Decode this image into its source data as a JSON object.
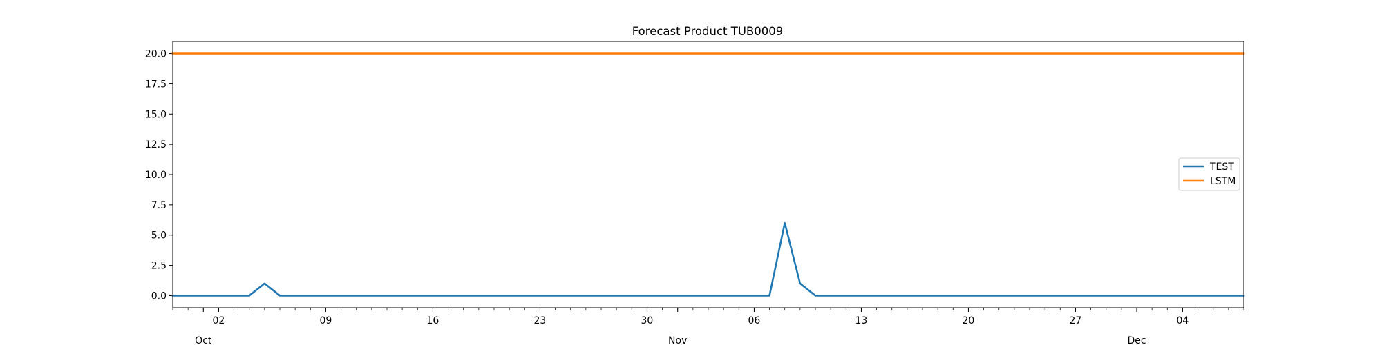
{
  "chart_data": {
    "type": "line",
    "title": "Forecast Product TUB0009",
    "xlabel": "",
    "ylabel": "",
    "grid": false,
    "legend_placement": "center-right",
    "x_range": [
      "2023-09-29",
      "2023-12-08"
    ],
    "ylim": [
      -1.0,
      21.0
    ],
    "y_ticks": [
      0.0,
      2.5,
      5.0,
      7.5,
      10.0,
      12.5,
      15.0,
      17.5,
      20.0
    ],
    "y_tick_labels": [
      "0.0",
      "2.5",
      "5.0",
      "7.5",
      "10.0",
      "12.5",
      "15.0",
      "17.5",
      "20.0"
    ],
    "x_major_ticks": [
      {
        "date": "2023-10-02",
        "label": "02"
      },
      {
        "date": "2023-10-09",
        "label": "09"
      },
      {
        "date": "2023-10-16",
        "label": "16"
      },
      {
        "date": "2023-10-23",
        "label": "23"
      },
      {
        "date": "2023-10-30",
        "label": "30"
      },
      {
        "date": "2023-11-06",
        "label": "06"
      },
      {
        "date": "2023-11-13",
        "label": "13"
      },
      {
        "date": "2023-11-20",
        "label": "20"
      },
      {
        "date": "2023-11-27",
        "label": "27"
      },
      {
        "date": "2023-12-04",
        "label": "04"
      }
    ],
    "x_month_labels": [
      {
        "date": "2023-10-01",
        "label": "Oct"
      },
      {
        "date": "2023-11-01",
        "label": "Nov"
      },
      {
        "date": "2023-12-01",
        "label": "Dec"
      }
    ],
    "series": [
      {
        "name": "TEST",
        "color": "#1f77b4",
        "points": [
          {
            "x": "2023-09-29",
            "y": 0
          },
          {
            "x": "2023-10-04",
            "y": 0
          },
          {
            "x": "2023-10-05",
            "y": 1
          },
          {
            "x": "2023-10-06",
            "y": 0
          },
          {
            "x": "2023-11-07",
            "y": 0
          },
          {
            "x": "2023-11-08",
            "y": 6
          },
          {
            "x": "2023-11-09",
            "y": 1
          },
          {
            "x": "2023-11-10",
            "y": 0
          },
          {
            "x": "2023-12-08",
            "y": 0
          }
        ]
      },
      {
        "name": "LSTM",
        "color": "#ff7f0e",
        "points": [
          {
            "x": "2023-09-29",
            "y": 20
          },
          {
            "x": "2023-12-08",
            "y": 20
          }
        ]
      }
    ]
  }
}
